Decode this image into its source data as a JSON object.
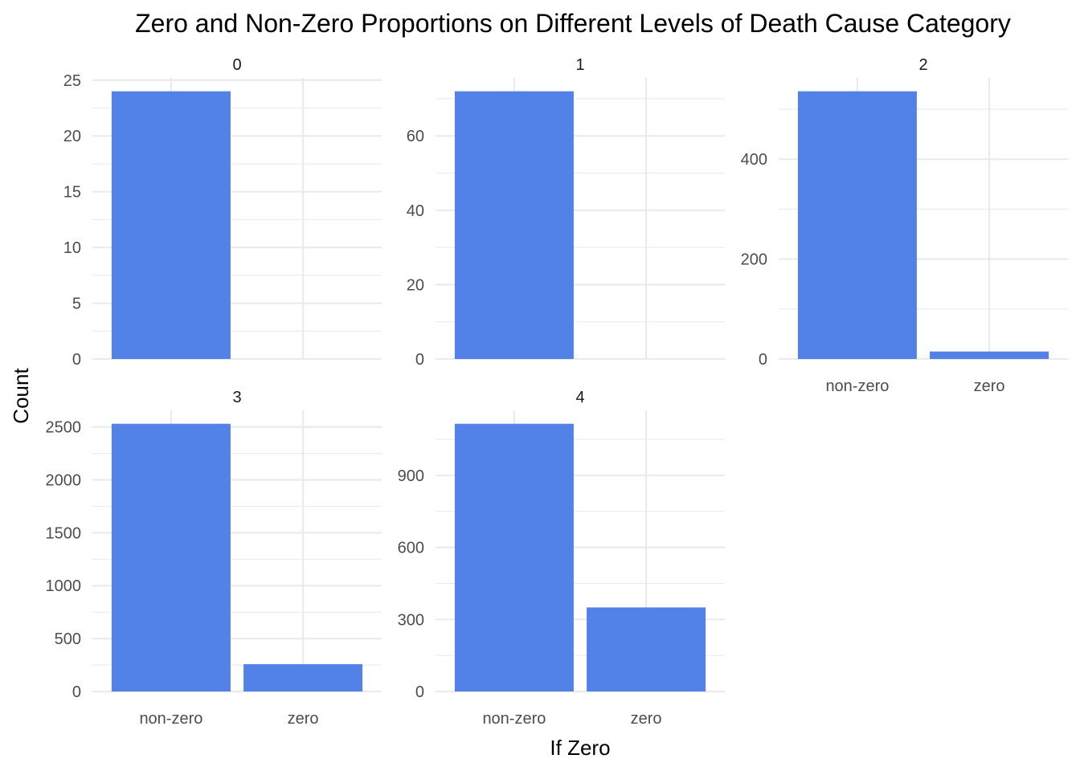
{
  "chart_data": {
    "type": "bar",
    "title": "Zero and Non-Zero Proportions on Different Levels of Death Cause Category",
    "xlabel": "If Zero",
    "ylabel": "Count",
    "bar_color": "#5281e8",
    "grid_color": "#ebebeb",
    "grid": true,
    "legend": "none",
    "categories": [
      "non-zero",
      "zero"
    ],
    "facets": [
      {
        "label": "0",
        "values": [
          24,
          0
        ],
        "ylim": [
          0,
          25.2
        ],
        "yticks": [
          0,
          5,
          10,
          15,
          20,
          25
        ],
        "show_x_labels": false
      },
      {
        "label": "1",
        "values": [
          72,
          0
        ],
        "ylim": [
          0,
          75.6
        ],
        "yticks": [
          0,
          20,
          40,
          60
        ],
        "show_x_labels": false
      },
      {
        "label": "2",
        "values": [
          536,
          15
        ],
        "ylim": [
          0,
          562.8
        ],
        "yticks": [
          0,
          200,
          400
        ],
        "show_x_labels": true
      },
      {
        "label": "3",
        "values": [
          2530,
          258
        ],
        "ylim": [
          0,
          2656.5
        ],
        "yticks": [
          0,
          500,
          1000,
          1500,
          2000,
          2500
        ],
        "show_x_labels": true
      },
      {
        "label": "4",
        "values": [
          1115,
          350
        ],
        "ylim": [
          0,
          1170.75
        ],
        "yticks": [
          0,
          300,
          600,
          900
        ],
        "show_x_labels": true
      }
    ]
  }
}
